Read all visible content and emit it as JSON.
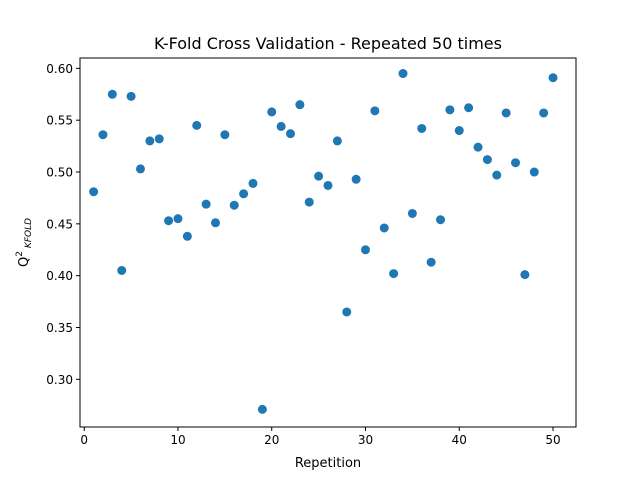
{
  "chart_data": {
    "type": "scatter",
    "title": "K-Fold Cross Validation - Repeated 50 times",
    "xlabel": "Repetition",
    "ylabel_main": "Q",
    "ylabel_sup": "2",
    "ylabel_sub": "KFOLD",
    "xlim": [
      -0.45,
      52.45
    ],
    "ylim": [
      0.254,
      0.61
    ],
    "xticks": [
      0,
      10,
      20,
      30,
      40,
      50
    ],
    "xtick_labels": [
      "0",
      "10",
      "20",
      "30",
      "40",
      "50"
    ],
    "yticks": [
      0.3,
      0.35,
      0.4,
      0.45,
      0.5,
      0.55,
      0.6
    ],
    "ytick_labels": [
      "0.30",
      "0.35",
      "0.40",
      "0.45",
      "0.50",
      "0.55",
      "0.60"
    ],
    "grid": false,
    "marker_color": "#1f77b4",
    "x": [
      1,
      2,
      3,
      4,
      5,
      6,
      7,
      8,
      9,
      10,
      11,
      12,
      13,
      14,
      15,
      16,
      17,
      18,
      19,
      20,
      21,
      22,
      23,
      24,
      25,
      26,
      27,
      28,
      29,
      30,
      31,
      32,
      33,
      34,
      35,
      36,
      37,
      38,
      39,
      40,
      41,
      42,
      43,
      44,
      45,
      46,
      47,
      48,
      49,
      50
    ],
    "y": [
      0.481,
      0.536,
      0.575,
      0.405,
      0.573,
      0.503,
      0.53,
      0.532,
      0.453,
      0.455,
      0.438,
      0.545,
      0.469,
      0.451,
      0.536,
      0.468,
      0.479,
      0.489,
      0.271,
      0.558,
      0.544,
      0.537,
      0.565,
      0.471,
      0.496,
      0.487,
      0.53,
      0.365,
      0.493,
      0.425,
      0.559,
      0.446,
      0.402,
      0.595,
      0.46,
      0.542,
      0.413,
      0.454,
      0.56,
      0.54,
      0.562,
      0.524,
      0.512,
      0.497,
      0.557,
      0.509,
      0.401,
      0.5,
      0.557,
      0.591
    ]
  }
}
